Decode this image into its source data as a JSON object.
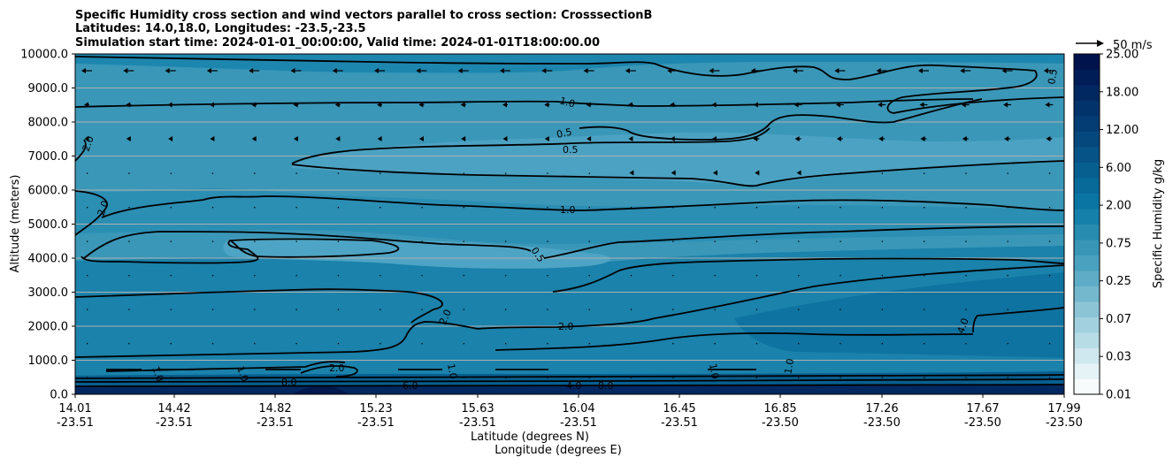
{
  "chart_data": {
    "type": "contour",
    "title_lines": [
      "Specific Humidity cross section and wind vectors parallel to cross section: CrosssectionB",
      "Latitudes: 14.0,18.0, Longitudes: -23.5,-23.5",
      "Simulation start time: 2024-01-01_00:00:00, Valid time: 2024-01-01T18:00:00.00"
    ],
    "ylabel": "Altitude (meters)",
    "xlabel_lines": [
      "Latitude (degrees N)",
      "Longitude (degrees E)"
    ],
    "yticks": [
      "0.0",
      "1000.0",
      "2000.0",
      "3000.0",
      "4000.0",
      "5000.0",
      "6000.0",
      "7000.0",
      "8000.0",
      "9000.0",
      "10000.0"
    ],
    "xticks": [
      {
        "lat": "14.01",
        "lon": "-23.51"
      },
      {
        "lat": "14.42",
        "lon": "-23.51"
      },
      {
        "lat": "14.82",
        "lon": "-23.51"
      },
      {
        "lat": "15.23",
        "lon": "-23.51"
      },
      {
        "lat": "15.63",
        "lon": "-23.51"
      },
      {
        "lat": "16.04",
        "lon": "-23.51"
      },
      {
        "lat": "16.45",
        "lon": "-23.51"
      },
      {
        "lat": "16.85",
        "lon": "-23.50"
      },
      {
        "lat": "17.26",
        "lon": "-23.50"
      },
      {
        "lat": "17.67",
        "lon": "-23.50"
      },
      {
        "lat": "17.99",
        "lon": "-23.50"
      }
    ],
    "ylim": [
      0,
      10000
    ],
    "grid": "horizontal",
    "colorbar": {
      "label": "Specific Humidity g/kg",
      "ticks": [
        "0.01",
        "0.03",
        "0.07",
        "0.25",
        "0.75",
        "2.00",
        "6.00",
        "12.00",
        "18.00",
        "25.00"
      ],
      "colors": [
        "#f7fbfc",
        "#e6f3f6",
        "#cfe7ee",
        "#b8dce6",
        "#a2d0de",
        "#8cc4d6",
        "#74b8ce",
        "#5eacc6",
        "#4aa1bf",
        "#3996b7",
        "#288bb0",
        "#1580aa",
        "#0a75a3",
        "#086a99",
        "#075f90",
        "#065387",
        "#05487e",
        "#043d74",
        "#03336b",
        "#022861",
        "#011d57",
        "#00134d"
      ]
    },
    "quiver_key": "50 m/s",
    "contour_labels": [
      "2.0",
      "2.0",
      "1.0",
      "0.5",
      "0.5",
      "1.0",
      "0.5",
      "2.0",
      "2.0",
      "4.0",
      "0.5",
      "1.0",
      "1.0",
      "1.0",
      "2.0",
      "8.0",
      "6.0",
      "4.0",
      "8.0",
      "1.0",
      "1.0"
    ]
  },
  "colors": {
    "grid": "#b0b0b0",
    "contour": "#000000",
    "fill_low": "#3996b7",
    "fill_mid": "#1580aa",
    "fill_high": "#0a75a3"
  }
}
